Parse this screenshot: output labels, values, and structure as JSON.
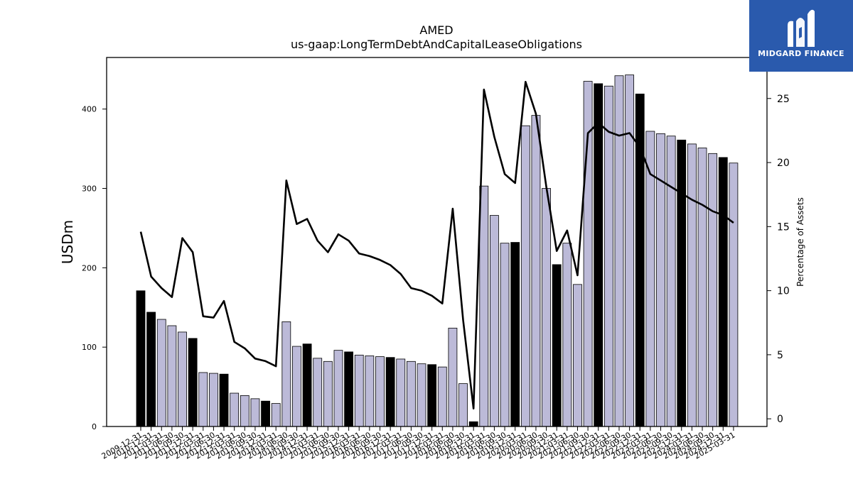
{
  "chart_data": {
    "type": "bar",
    "title": "AMED",
    "subtitle": "us-gaap:LongTermDebtAndCapitalLeaseObligations",
    "ylabel": "USDm",
    "ylabel_right": "Percentage of Assets",
    "ylim": [
      0,
      465
    ],
    "ylim_right": [
      -0.6,
      28.2
    ],
    "yticks": [
      0,
      100,
      200,
      300,
      400
    ],
    "yticks_right": [
      0,
      5,
      10,
      15,
      20,
      25
    ],
    "grid": false,
    "categories": [
      "2009-12-31",
      "2010-12-31",
      "2011-03-31",
      "2011-06-30",
      "2011-09-30",
      "2011-12-31",
      "2012-03-31",
      "2012-06-30",
      "2012-12-31",
      "2013-03-31",
      "2013-06-30",
      "2013-09-30",
      "2013-12-31",
      "2014-03-31",
      "2014-06-30",
      "2014-09-30",
      "2014-12-31",
      "2015-03-31",
      "2015-06-30",
      "2015-09-30",
      "2015-12-31",
      "2016-03-31",
      "2016-06-30",
      "2016-09-30",
      "2016-12-31",
      "2017-03-31",
      "2017-06-30",
      "2017-09-30",
      "2017-12-31",
      "2018-03-31",
      "2018-06-30",
      "2018-09-30",
      "2018-12-31",
      "2019-03-31",
      "2019-06-30",
      "2019-09-30",
      "2019-12-31",
      "2020-03-31",
      "2020-06-30",
      "2020-09-30",
      "2020-12-31",
      "2021-03-31",
      "2021-06-30",
      "2021-09-30",
      "2021-12-31",
      "2022-03-31",
      "2022-06-30",
      "2022-09-30",
      "2022-12-31",
      "2023-03-31",
      "2023-06-30",
      "2023-09-30",
      "2023-12-31",
      "2024-03-31",
      "2024-06-30",
      "2024-09-30",
      "2024-12-31",
      "2025-03-31"
    ],
    "xtick_labels": [
      "2009-12-31",
      "2010-12-31",
      "2011-03-31",
      "2011-06-30",
      "2011-09-30",
      "2011-12-31",
      "2012-03-31",
      "2012-06-30",
      "2012-12-31",
      "2013-03-31",
      "2013-06-30",
      "2013-09-30",
      "2013-12-31",
      "2014-03-31",
      "2014-06-30",
      "2014-09-30",
      "2014-12-31",
      "2015-03-31",
      "2015-06-30",
      "2015-09-30",
      "2015-12-31",
      "2016-03-31",
      "2016-06-30",
      "2016-09-30",
      "2016-12-31",
      "2017-03-31",
      "2017-06-30",
      "2017-09-30",
      "2017-12-31",
      "2018-03-31",
      "2018-06-30",
      "2018-09-30",
      "2018-12-31",
      "2019-03-31",
      "2019-06-30",
      "2019-09-30",
      "2019-12-31",
      "2020-03-31",
      "2020-06-30",
      "2020-09-30",
      "2020-12-31",
      "2021-03-31",
      "2021-06-30",
      "2021-09-30",
      "2021-12-31",
      "2022-03-31",
      "2022-06-30",
      "2022-09-30",
      "2022-12-31",
      "2023-03-31",
      "2023-06-30",
      "2023-09-30",
      "2023-12-31",
      "2024-03-31",
      "2024-06-30",
      "2024-09-30",
      "2024-12-31",
      "2025-03-31"
    ],
    "series": [
      {
        "kind": "bar",
        "axis": "left",
        "values": [
          171,
          144,
          135,
          127,
          119,
          111,
          68,
          67,
          66,
          42,
          39,
          35,
          32,
          29,
          132,
          101,
          104,
          86,
          82,
          96,
          94,
          90,
          89,
          88,
          87,
          85,
          82,
          79,
          78,
          75,
          124,
          54,
          6,
          303,
          266,
          231,
          232,
          379,
          392,
          300,
          204,
          231,
          179,
          435,
          432,
          429,
          442,
          443,
          419,
          372,
          369,
          366,
          361,
          356,
          351,
          344,
          339,
          332
        ],
        "annual_flags": [
          1,
          1,
          0,
          0,
          0,
          1,
          0,
          0,
          1,
          0,
          0,
          0,
          1,
          0,
          0,
          0,
          1,
          0,
          0,
          0,
          1,
          0,
          0,
          0,
          1,
          0,
          0,
          0,
          1,
          0,
          0,
          0,
          1,
          0,
          0,
          0,
          1,
          0,
          0,
          0,
          1,
          0,
          0,
          0,
          1,
          0,
          0,
          0,
          1,
          0,
          0,
          0,
          1,
          0,
          0,
          0,
          1,
          0
        ]
      },
      {
        "kind": "line",
        "axis": "right",
        "values": [
          14.6,
          11.1,
          10.2,
          9.5,
          14.1,
          13.0,
          8.0,
          7.9,
          9.2,
          6.0,
          5.5,
          4.7,
          4.5,
          4.1,
          18.6,
          15.2,
          15.6,
          13.9,
          13.0,
          14.4,
          13.9,
          12.9,
          12.7,
          12.4,
          12.0,
          11.3,
          10.2,
          10.0,
          9.6,
          9.0,
          16.4,
          7.7,
          0.8,
          25.7,
          22.0,
          19.1,
          18.4,
          26.3,
          23.8,
          18.1,
          13.1,
          14.7,
          11.2,
          22.3,
          23.1,
          22.4,
          22.1,
          22.3,
          21.2,
          19.1,
          18.6,
          18.1,
          17.6,
          17.1,
          16.7,
          16.2,
          15.9,
          15.3
        ]
      }
    ],
    "colors": {
      "bar_light": "#bcbad8",
      "bar_dark": "#000000",
      "bar_edge": "#000000",
      "line": "#000000",
      "logo_bg": "#2a5aad"
    }
  },
  "logo": {
    "text": "MIDGARD FINANCE",
    "icon": "midgard-logo-icon"
  }
}
